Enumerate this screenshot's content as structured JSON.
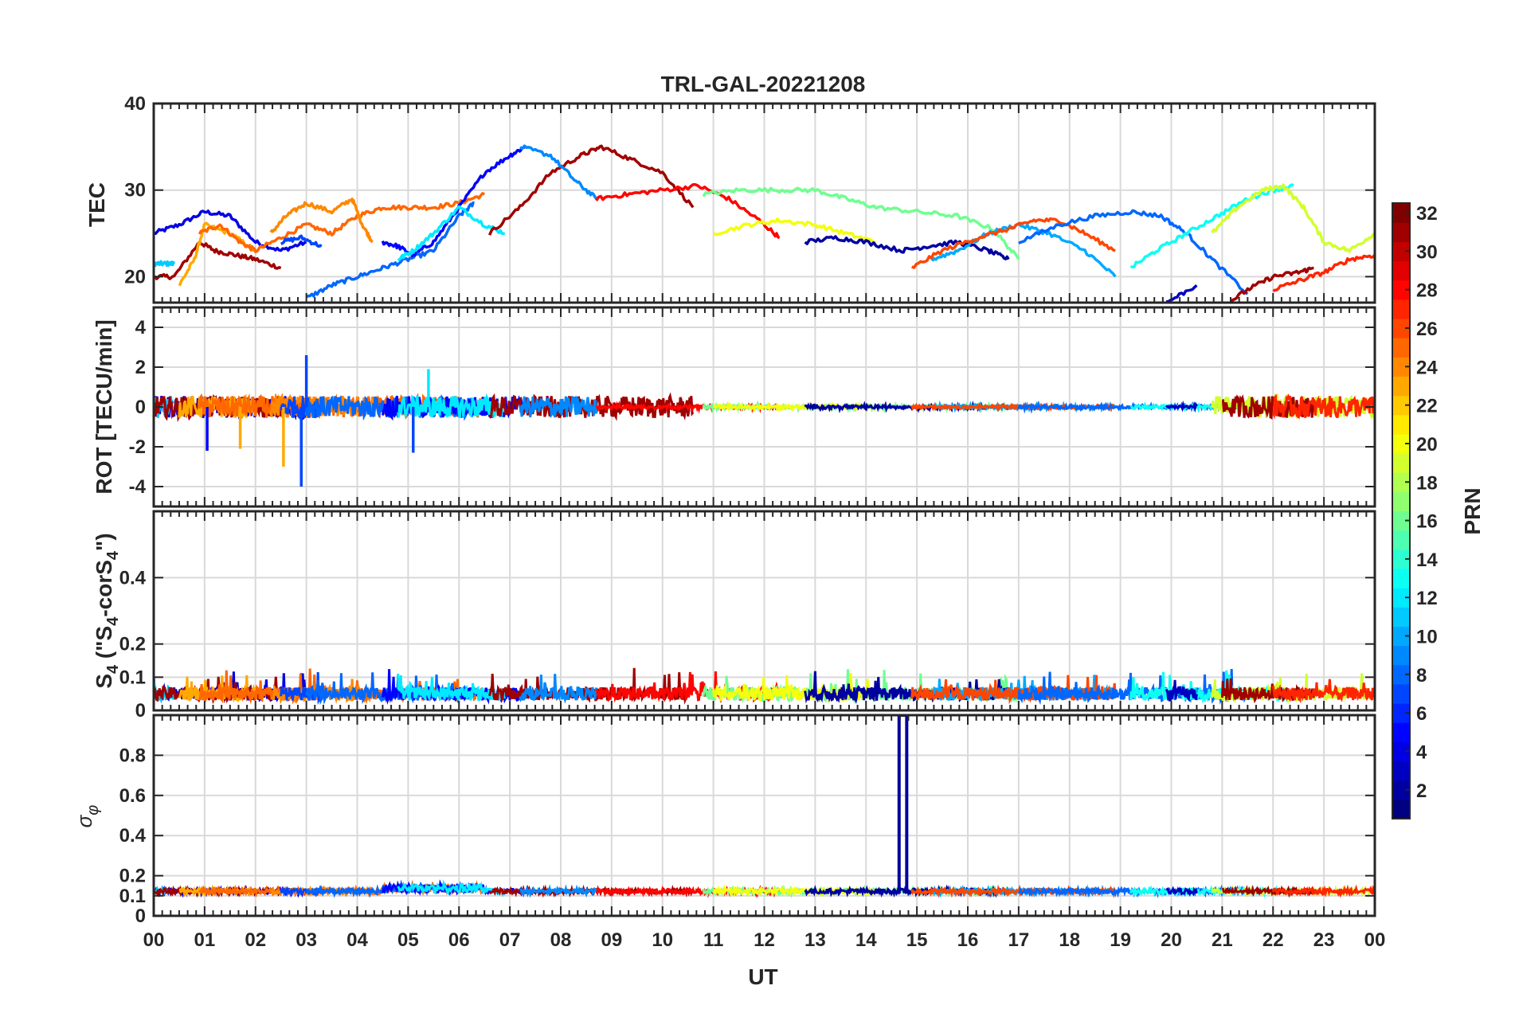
{
  "chart_data": {
    "type": "line",
    "title": "TRL-GAL-20221208",
    "xlabel": "UT",
    "x_tick_labels": [
      "00",
      "01",
      "02",
      "03",
      "04",
      "05",
      "06",
      "07",
      "08",
      "09",
      "10",
      "11",
      "12",
      "13",
      "14",
      "15",
      "16",
      "17",
      "18",
      "19",
      "20",
      "21",
      "22",
      "23",
      "00"
    ],
    "xlim": [
      0,
      24
    ],
    "grid": true,
    "colorbar": {
      "label": "PRN",
      "range": [
        1,
        32
      ],
      "tick_labels": [
        "2",
        "4",
        "6",
        "8",
        "10",
        "12",
        "14",
        "16",
        "18",
        "20",
        "22",
        "24",
        "26",
        "28",
        "30",
        "32"
      ],
      "colormap": "jet"
    },
    "panels": [
      {
        "name": "tec",
        "ylabel": "TEC",
        "ylim": [
          17,
          40
        ],
        "y_tick_labels": [
          "20",
          "30",
          "40"
        ],
        "series": [
          {
            "prn": 4,
            "x": [
              0.0,
              0.5,
              1.0,
              1.5,
              2.0,
              2.5,
              3.0
            ],
            "y": [
              25,
              26,
              27.5,
              27,
              24,
              23,
              24
            ]
          },
          {
            "prn": 11,
            "x": [
              0.0,
              0.2,
              0.4
            ],
            "y": [
              21.5,
              21.5,
              21.5
            ]
          },
          {
            "prn": 31,
            "x": [
              0.0,
              0.4,
              0.9,
              1.2,
              1.6,
              2.0,
              2.5
            ],
            "y": [
              20,
              20,
              24,
              23,
              22.5,
              22,
              21
            ]
          },
          {
            "prn": 23,
            "x": [
              0.5,
              0.8,
              1.0,
              1.5,
              2.0
            ],
            "y": [
              19,
              22,
              26,
              25,
              23
            ]
          },
          {
            "prn": 25,
            "x": [
              0.9,
              1.3,
              1.7,
              2.0,
              2.5,
              3.0,
              3.5,
              4.0,
              4.5,
              5.0,
              5.5,
              6.0,
              6.5
            ],
            "y": [
              25,
              26,
              24,
              23,
              24.5,
              26,
              25,
              27,
              28,
              28,
              28,
              28.5,
              29.5
            ]
          },
          {
            "prn": 24,
            "x": [
              2.3,
              2.6,
              3.0,
              3.5,
              3.9,
              4.1,
              4.3
            ],
            "y": [
              25,
              27,
              28.5,
              27.5,
              29,
              26,
              24
            ]
          },
          {
            "prn": 7,
            "x": [
              2.5,
              2.9,
              3.3
            ],
            "y": [
              24,
              24.5,
              23.5
            ]
          },
          {
            "prn": 8,
            "x": [
              3.0,
              3.5,
              4.0,
              4.5,
              5.0,
              5.5,
              6.0,
              6.3
            ],
            "y": [
              17.5,
              19,
              20,
              21,
              22,
              23,
              27,
              28.5
            ]
          },
          {
            "prn": 5,
            "x": [
              4.5,
              4.8,
              5.1,
              5.5,
              6.0,
              6.5,
              7.0,
              7.3
            ],
            "y": [
              24,
              23.5,
              22.5,
              24,
              28,
              32,
              34,
              35
            ]
          },
          {
            "prn": 12,
            "x": [
              4.8,
              5.1,
              5.5,
              6.0,
              6.5,
              6.9
            ],
            "y": [
              22,
              23,
              25,
              28,
              26,
              25
            ]
          },
          {
            "prn": 31,
            "x": [
              6.6,
              7.2,
              7.8,
              8.4,
              8.8,
              9.4,
              10.0,
              10.6
            ],
            "y": [
              25,
              28,
              32,
              34,
              35,
              33.5,
              32,
              28
            ]
          },
          {
            "prn": 9,
            "x": [
              7.2,
              7.8,
              8.3,
              8.7
            ],
            "y": [
              35,
              34,
              31,
              29
            ]
          },
          {
            "prn": 28,
            "x": [
              8.7,
              9.3,
              10.0,
              10.7,
              11.3,
              11.9,
              12.3
            ],
            "y": [
              29,
              29.5,
              30,
              30.5,
              29,
              26.5,
              24.5
            ]
          },
          {
            "prn": 16,
            "x": [
              10.8,
              11.5,
              12.3,
              13.0,
              13.6,
              14.2,
              15.0,
              15.8,
              16.5,
              17.0
            ],
            "y": [
              29.5,
              30,
              30,
              30,
              29,
              28,
              27.5,
              27,
              25.5,
              22
            ]
          },
          {
            "prn": 20,
            "x": [
              11.0,
              11.7,
              12.3,
              13.0,
              13.6,
              14.2
            ],
            "y": [
              25,
              26,
              26.5,
              26,
              25,
              24
            ]
          },
          {
            "prn": 2,
            "x": [
              12.8,
              13.4,
              14.0,
              14.7,
              15.2,
              15.8,
              16.4,
              16.8
            ],
            "y": [
              24,
              24.5,
              24,
              23,
              23.5,
              24,
              23,
              22
            ]
          },
          {
            "prn": 10,
            "x": [
              15.3,
              15.8,
              16.4,
              17.0,
              17.6,
              18.3,
              18.9
            ],
            "y": [
              22,
              23,
              25,
              26,
              25,
              23,
              20
            ]
          },
          {
            "prn": 26,
            "x": [
              14.9,
              15.5,
              16.2,
              16.8,
              17.3,
              17.8,
              18.3,
              18.9
            ],
            "y": [
              21,
              23,
              24.5,
              25.5,
              26.5,
              26.5,
              25,
              23
            ]
          },
          {
            "prn": 8,
            "x": [
              17.0,
              17.8,
              18.5,
              19.2,
              19.8,
              20.3,
              20.8,
              21.5
            ],
            "y": [
              24,
              26,
              27,
              27.5,
              27,
              25,
              22,
              18
            ]
          },
          {
            "prn": 13,
            "x": [
              19.2,
              19.7,
              20.3,
              20.9,
              21.5,
              22.0,
              22.4
            ],
            "y": [
              21,
              23,
              25,
              27,
              29,
              30,
              30.5
            ]
          },
          {
            "prn": 19,
            "x": [
              20.8,
              21.3,
              21.8,
              22.2,
              22.6,
              23.0,
              23.5,
              24.0
            ],
            "y": [
              25,
              28,
              30,
              30.5,
              28,
              24,
              23,
              25
            ]
          },
          {
            "prn": 31,
            "x": [
              21.0,
              21.5,
              22.0,
              22.5,
              22.8
            ],
            "y": [
              16.5,
              18.5,
              20,
              20.5,
              21
            ]
          },
          {
            "prn": 27,
            "x": [
              22.0,
              22.5,
              23.0,
              23.5,
              24.0
            ],
            "y": [
              18.5,
              19.5,
              20.5,
              22,
              22.5
            ]
          },
          {
            "prn": 3,
            "x": [
              19.9,
              20.5
            ],
            "y": [
              17,
              19
            ]
          }
        ]
      },
      {
        "name": "rot",
        "ylabel": "ROT [TECU/min]",
        "ylim": [
          -5,
          5
        ],
        "y_tick_labels": [
          "-4",
          "-2",
          "0",
          "2",
          "4"
        ],
        "spikes": [
          {
            "prn": 23,
            "x": 2.55,
            "y": -3.0
          },
          {
            "prn": 7,
            "x": 2.9,
            "y": -4.0
          },
          {
            "prn": 7,
            "x": 3.0,
            "y": 2.6
          },
          {
            "prn": 5,
            "x": 1.05,
            "y": -2.2
          },
          {
            "prn": 23,
            "x": 1.7,
            "y": -2.1
          },
          {
            "prn": 7,
            "x": 5.1,
            "y": -2.3
          },
          {
            "prn": 12,
            "x": 5.4,
            "y": 1.9
          }
        ]
      },
      {
        "name": "s4",
        "ylabel": "S4 (\"S4-corS4\")",
        "ylabel_main": "S",
        "ylabel_sub1": "4",
        "ylabel_mid": " (\"S",
        "ylabel_sub2": "4",
        "ylabel_mid2": "-corS",
        "ylabel_sub3": "4",
        "ylabel_end": "\")",
        "ylim": [
          0,
          0.6
        ],
        "y_tick_labels": [
          "0",
          "0.1",
          "0.2",
          "0.4"
        ],
        "y_tick_values": [
          0,
          0.1,
          0.2,
          0.4
        ]
      },
      {
        "name": "sigma",
        "ylabel": "σφ",
        "ylabel_main": "σ",
        "ylabel_sub": "φ",
        "ylim": [
          0,
          1
        ],
        "y_tick_labels": [
          "0",
          "0.1",
          "0.2",
          "0.4",
          "0.6",
          "0.8"
        ],
        "y_tick_values": [
          0,
          0.1,
          0.2,
          0.4,
          0.6,
          0.8
        ],
        "spikes": [
          {
            "prn": 2,
            "x": 14.65,
            "y": 1.0
          },
          {
            "prn": 2,
            "x": 14.8,
            "y": 1.0
          }
        ]
      }
    ]
  }
}
